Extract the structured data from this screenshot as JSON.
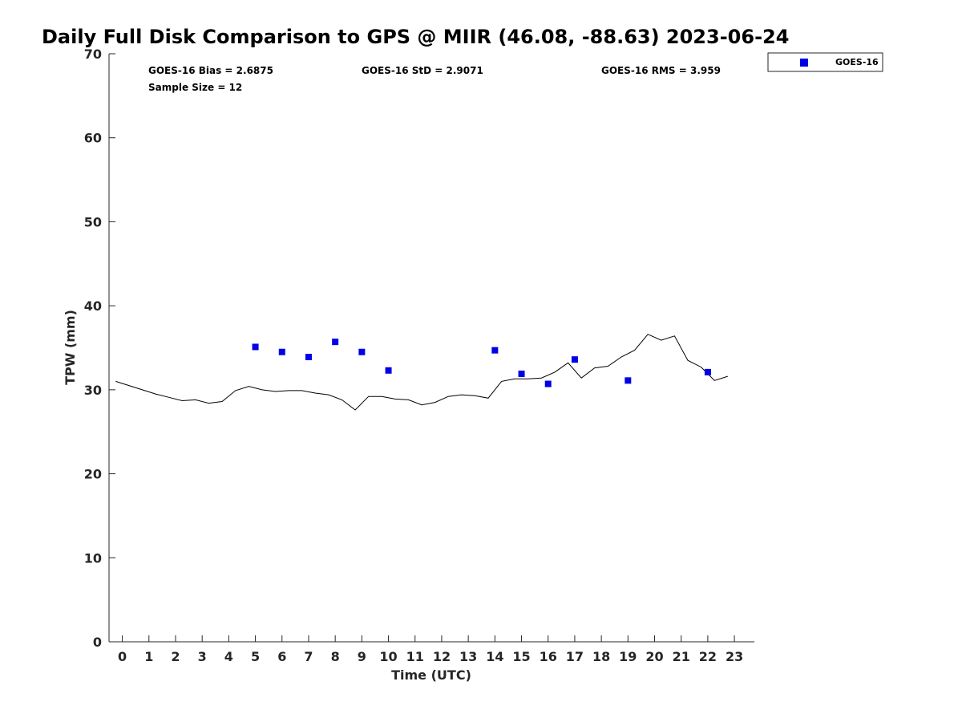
{
  "chart_data": {
    "type": "scatter",
    "title": "Daily Full Disk Comparison to GPS @ MIIR (46.08, -88.63) 2023-06-24",
    "xlabel": "Time (UTC)",
    "ylabel": "TPW (mm)",
    "xlim": [
      -0.5,
      23.75
    ],
    "ylim": [
      0,
      70
    ],
    "xticks": [
      0,
      1,
      2,
      3,
      4,
      5,
      6,
      7,
      8,
      9,
      10,
      11,
      12,
      13,
      14,
      15,
      16,
      17,
      18,
      19,
      20,
      21,
      22,
      23
    ],
    "yticks": [
      0,
      10,
      20,
      30,
      40,
      50,
      60,
      70
    ],
    "grid": false,
    "legend_position": "top-right",
    "stats": {
      "bias": "GOES-16 Bias = 2.6875",
      "std": "GOES-16 StD = 2.9071",
      "rms": "GOES-16 RMS = 3.959",
      "sample_size": "Sample Size = 12"
    },
    "series": [
      {
        "name": "GOES-16",
        "kind": "scatter",
        "color": "#0000e6",
        "marker": "square",
        "x": [
          5,
          6,
          7,
          8,
          9,
          10,
          14,
          15,
          16,
          17,
          19,
          22
        ],
        "y": [
          35.1,
          34.5,
          33.9,
          35.7,
          34.5,
          32.3,
          34.7,
          31.9,
          30.7,
          33.6,
          31.1,
          32.1
        ]
      },
      {
        "kind": "line",
        "color": "#000000",
        "x": [
          -0.25,
          0.25,
          0.75,
          1.25,
          1.75,
          2.25,
          2.75,
          3.25,
          3.75,
          4.25,
          4.75,
          5.25,
          5.75,
          6.25,
          6.75,
          7.25,
          7.75,
          8.25,
          8.75,
          9.25,
          9.75,
          10.25,
          10.75,
          11.25,
          11.75,
          12.25,
          12.75,
          13.25,
          13.75,
          14.25,
          14.75,
          15.25,
          15.75,
          16.25,
          16.75,
          17.25,
          17.75,
          18.25,
          18.75,
          19.25,
          19.75,
          20.25,
          20.75,
          21.25,
          21.75,
          22.25,
          22.75
        ],
        "y": [
          31.0,
          30.5,
          30.0,
          29.5,
          29.1,
          28.7,
          28.8,
          28.4,
          28.6,
          29.9,
          30.4,
          30.0,
          29.8,
          29.9,
          29.9,
          29.6,
          29.4,
          28.8,
          27.6,
          29.2,
          29.2,
          28.9,
          28.8,
          28.2,
          28.5,
          29.2,
          29.4,
          29.3,
          29.0,
          31.0,
          31.3,
          31.3,
          31.4,
          32.1,
          33.2,
          31.4,
          32.6,
          32.8,
          33.9,
          34.7,
          36.6,
          35.9,
          36.4,
          33.5,
          32.7,
          31.1,
          31.6
        ]
      }
    ]
  }
}
